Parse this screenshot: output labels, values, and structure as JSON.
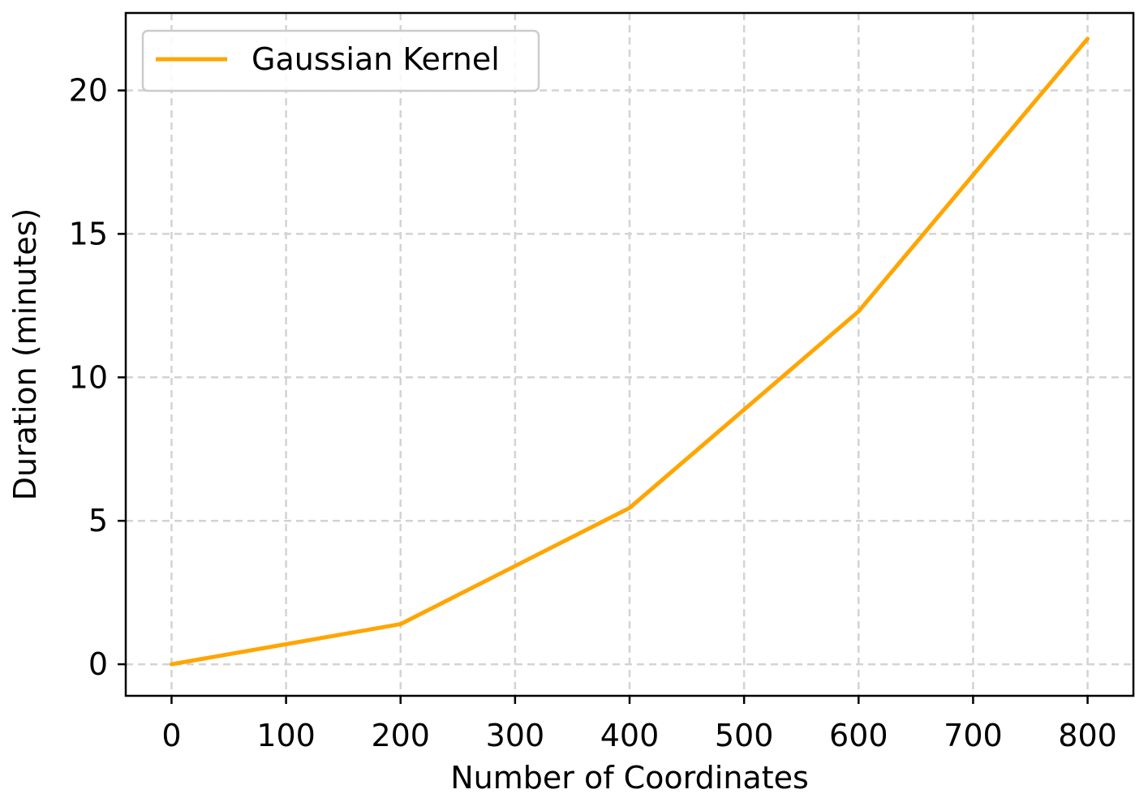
{
  "chart_data": {
    "type": "line",
    "title": "",
    "xlabel": "Number of Coordinates",
    "ylabel": "Duration (minutes)",
    "xlim": [
      -40,
      840
    ],
    "ylim": [
      -1.1,
      22.7
    ],
    "x_ticks": [
      0,
      100,
      200,
      300,
      400,
      500,
      600,
      700,
      800
    ],
    "y_ticks": [
      0,
      5,
      10,
      15,
      20
    ],
    "grid": true,
    "legend_position": "top-left",
    "series": [
      {
        "name": "Gaussian Kernel",
        "color": "#ffa500",
        "x": [
          0,
          200,
          400,
          600,
          800
        ],
        "y": [
          0,
          1.4,
          5.45,
          12.3,
          21.8
        ]
      }
    ]
  }
}
